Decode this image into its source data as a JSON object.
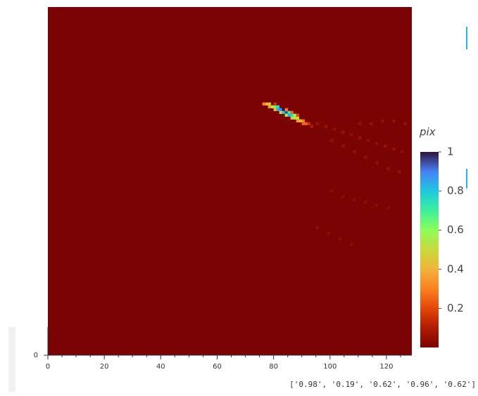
{
  "chart_data": {
    "type": "heatmap",
    "xlim": [
      0,
      129
    ],
    "ylim": [
      0,
      124
    ],
    "xticks": [
      0,
      20,
      40,
      60,
      80,
      100,
      120
    ],
    "xminorticks": [
      5,
      10,
      15,
      25,
      30,
      35,
      45,
      50,
      55,
      65,
      70,
      75,
      85,
      90,
      95,
      105,
      110,
      115,
      125
    ],
    "yticks": [
      0
    ],
    "fill_value": 0,
    "colorbar_title": "pix",
    "zlim": [
      0,
      1
    ],
    "zticks": [
      0.2,
      0.4,
      0.6,
      0.8,
      1
    ],
    "colorscale": [
      [
        0,
        "#7a0403"
      ],
      [
        0.1,
        "#b11b02"
      ],
      [
        0.2,
        "#e4460a"
      ],
      [
        0.3,
        "#fb8022"
      ],
      [
        0.4,
        "#f1b33a"
      ],
      [
        0.5,
        "#c9d93a"
      ],
      [
        0.6,
        "#8efd59"
      ],
      [
        0.7,
        "#3df09a"
      ],
      [
        0.8,
        "#1fc8de"
      ],
      [
        0.9,
        "#4682f8"
      ],
      [
        1,
        "#30123b"
      ]
    ],
    "cells": [
      [
        76,
        89,
        0.3
      ],
      [
        77,
        89,
        0.4
      ],
      [
        78,
        89,
        0.45
      ],
      [
        78,
        88,
        0.35
      ],
      [
        79,
        88,
        0.55
      ],
      [
        80,
        88,
        0.65
      ],
      [
        80,
        87,
        0.4
      ],
      [
        81,
        88,
        0.75
      ],
      [
        81,
        87,
        0.85
      ],
      [
        82,
        87,
        0.9
      ],
      [
        82,
        86,
        0.5
      ],
      [
        83,
        87,
        1
      ],
      [
        83,
        86,
        0.8
      ],
      [
        84,
        86,
        0.95
      ],
      [
        84,
        85,
        0.55
      ],
      [
        85,
        86,
        0.7
      ],
      [
        85,
        85,
        0.85
      ],
      [
        86,
        85,
        0.75
      ],
      [
        86,
        84,
        0.45
      ],
      [
        87,
        85,
        0.6
      ],
      [
        87,
        84,
        0.55
      ],
      [
        88,
        84,
        0.5
      ],
      [
        88,
        83,
        0.35
      ],
      [
        89,
        83,
        0.4
      ],
      [
        90,
        83,
        0.3
      ],
      [
        90,
        82,
        0.25
      ],
      [
        91,
        82,
        0.25
      ],
      [
        92,
        82,
        0.15
      ],
      [
        93,
        81,
        0.1
      ],
      [
        80,
        89,
        0.15
      ],
      [
        84,
        87,
        0.3
      ],
      [
        86,
        86,
        0.25
      ],
      [
        88,
        85,
        0.2
      ],
      [
        95,
        82,
        0.06
      ],
      [
        98,
        81,
        0.06
      ],
      [
        101,
        80,
        0.05
      ],
      [
        104,
        79,
        0.06
      ],
      [
        107,
        78,
        0.05
      ],
      [
        110,
        77,
        0.06
      ],
      [
        113,
        76,
        0.05
      ],
      [
        116,
        75,
        0.05
      ],
      [
        119,
        74,
        0.06
      ],
      [
        122,
        73,
        0.05
      ],
      [
        125,
        72,
        0.05
      ],
      [
        110,
        82,
        0.05
      ],
      [
        114,
        82,
        0.06
      ],
      [
        118,
        83,
        0.05
      ],
      [
        122,
        83,
        0.05
      ],
      [
        126,
        82,
        0.05
      ],
      [
        100,
        76,
        0.05
      ],
      [
        104,
        74,
        0.05
      ],
      [
        108,
        72,
        0.05
      ],
      [
        112,
        70,
        0.05
      ],
      [
        116,
        68,
        0.05
      ],
      [
        120,
        66,
        0.05
      ],
      [
        124,
        65,
        0.05
      ],
      [
        100,
        58,
        0.04
      ],
      [
        104,
        56,
        0.04
      ],
      [
        108,
        55,
        0.04
      ],
      [
        112,
        54,
        0.04
      ],
      [
        116,
        53,
        0.04
      ],
      [
        120,
        52,
        0.04
      ],
      [
        95,
        45,
        0.04
      ],
      [
        99,
        43,
        0.04
      ],
      [
        103,
        41,
        0.04
      ],
      [
        107,
        39,
        0.04
      ]
    ],
    "footer": "['0.98', '0.19', '0.62', '0.96', '0.62']"
  }
}
